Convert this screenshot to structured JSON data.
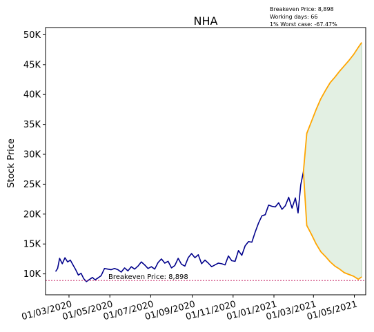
{
  "chart_data": {
    "type": "line",
    "title": "NHA",
    "ylabel": "Stock Price",
    "xlabel": "",
    "x_axis_type": "date",
    "xlim": [
      "2020-01-26",
      "2021-05-18"
    ],
    "ylim": [
      6500,
      51200
    ],
    "y_ticks": [
      10000,
      15000,
      20000,
      25000,
      30000,
      35000,
      40000,
      45000,
      50000
    ],
    "y_tick_labels": [
      "10K",
      "15K",
      "20K",
      "25K",
      "30K",
      "35K",
      "40K",
      "45K",
      "50K"
    ],
    "x_ticks": [
      "2020-03-01",
      "2020-05-01",
      "2020-07-01",
      "2020-09-01",
      "2020-11-01",
      "2021-01-01",
      "2021-03-01",
      "2021-05-01"
    ],
    "x_tick_labels": [
      "01/03/2020",
      "01/05/2020",
      "01/07/2020",
      "01/09/2020",
      "01/11/2020",
      "01/01/2021",
      "01/03/2021",
      "01/05/2021"
    ],
    "grid": false,
    "info_lines": [
      "Breakeven Price: 8,898",
      "Working days: 66",
      "1% Worst case: -67.47%"
    ],
    "breakeven": {
      "value": 8898,
      "label": "Breakeven Price: 8,898",
      "color": "#c2185b"
    },
    "colors": {
      "history": "#00008b",
      "forecast": "#ffa500",
      "band": "#e3f0e3",
      "band_edge": "#b7d4b7"
    },
    "history": {
      "x": [
        "2020-02-10",
        "2020-02-13",
        "2020-02-16",
        "2020-02-20",
        "2020-02-24",
        "2020-02-28",
        "2020-03-03",
        "2020-03-07",
        "2020-03-11",
        "2020-03-15",
        "2020-03-19",
        "2020-03-23",
        "2020-03-27",
        "2020-04-01",
        "2020-04-05",
        "2020-04-09",
        "2020-04-13",
        "2020-04-18",
        "2020-04-23",
        "2020-04-28",
        "2020-05-03",
        "2020-05-08",
        "2020-05-13",
        "2020-05-18",
        "2020-05-23",
        "2020-05-28",
        "2020-06-02",
        "2020-06-07",
        "2020-06-12",
        "2020-06-17",
        "2020-06-22",
        "2020-06-27",
        "2020-07-02",
        "2020-07-07",
        "2020-07-12",
        "2020-07-17",
        "2020-07-22",
        "2020-07-27",
        "2020-08-01",
        "2020-08-06",
        "2020-08-11",
        "2020-08-16",
        "2020-08-21",
        "2020-08-26",
        "2020-08-31",
        "2020-09-05",
        "2020-09-10",
        "2020-09-15",
        "2020-09-20",
        "2020-09-25",
        "2020-09-30",
        "2020-10-05",
        "2020-10-10",
        "2020-10-15",
        "2020-10-20",
        "2020-10-25",
        "2020-10-30",
        "2020-11-04",
        "2020-11-09",
        "2020-11-14",
        "2020-11-19",
        "2020-11-24",
        "2020-11-29",
        "2020-12-04",
        "2020-12-09",
        "2020-12-14",
        "2020-12-19",
        "2020-12-24",
        "2020-12-29",
        "2021-01-03",
        "2021-01-08",
        "2021-01-13",
        "2021-01-18",
        "2021-01-23",
        "2021-01-28",
        "2021-02-02",
        "2021-02-06",
        "2021-02-10",
        "2021-02-14"
      ],
      "y": [
        10400,
        10900,
        12600,
        11700,
        12700,
        12000,
        12300,
        11500,
        10700,
        9800,
        10100,
        9200,
        8700,
        9100,
        9400,
        9000,
        9300,
        9700,
        10900,
        10800,
        10700,
        10900,
        10700,
        10300,
        11000,
        10500,
        11200,
        10800,
        11300,
        12000,
        11500,
        10900,
        11200,
        10800,
        11900,
        12500,
        11800,
        12100,
        11000,
        11400,
        12600,
        11600,
        11300,
        12700,
        13400,
        12700,
        13200,
        11700,
        12300,
        11800,
        11200,
        11500,
        11800,
        11700,
        11500,
        13000,
        12200,
        12100,
        13900,
        13100,
        14700,
        15400,
        15300,
        17000,
        18500,
        19700,
        19900,
        21500,
        21300,
        21200,
        21900,
        20800,
        21400,
        22800,
        21000,
        22700,
        20200,
        24900,
        27100
      ]
    },
    "forecast_band": {
      "x": [
        "2021-02-14",
        "2021-02-19",
        "2021-02-26",
        "2021-03-05",
        "2021-03-12",
        "2021-03-19",
        "2021-03-26",
        "2021-04-02",
        "2021-04-09",
        "2021-04-16",
        "2021-04-23",
        "2021-04-30",
        "2021-05-07",
        "2021-05-12"
      ],
      "upper": [
        27100,
        33500,
        35500,
        37500,
        39300,
        40700,
        42000,
        42900,
        43900,
        44800,
        45700,
        46700,
        47900,
        48700
      ],
      "lower": [
        27100,
        18100,
        16600,
        15000,
        13700,
        12900,
        12000,
        11300,
        10800,
        10200,
        9900,
        9600,
        9100,
        9500
      ]
    }
  }
}
